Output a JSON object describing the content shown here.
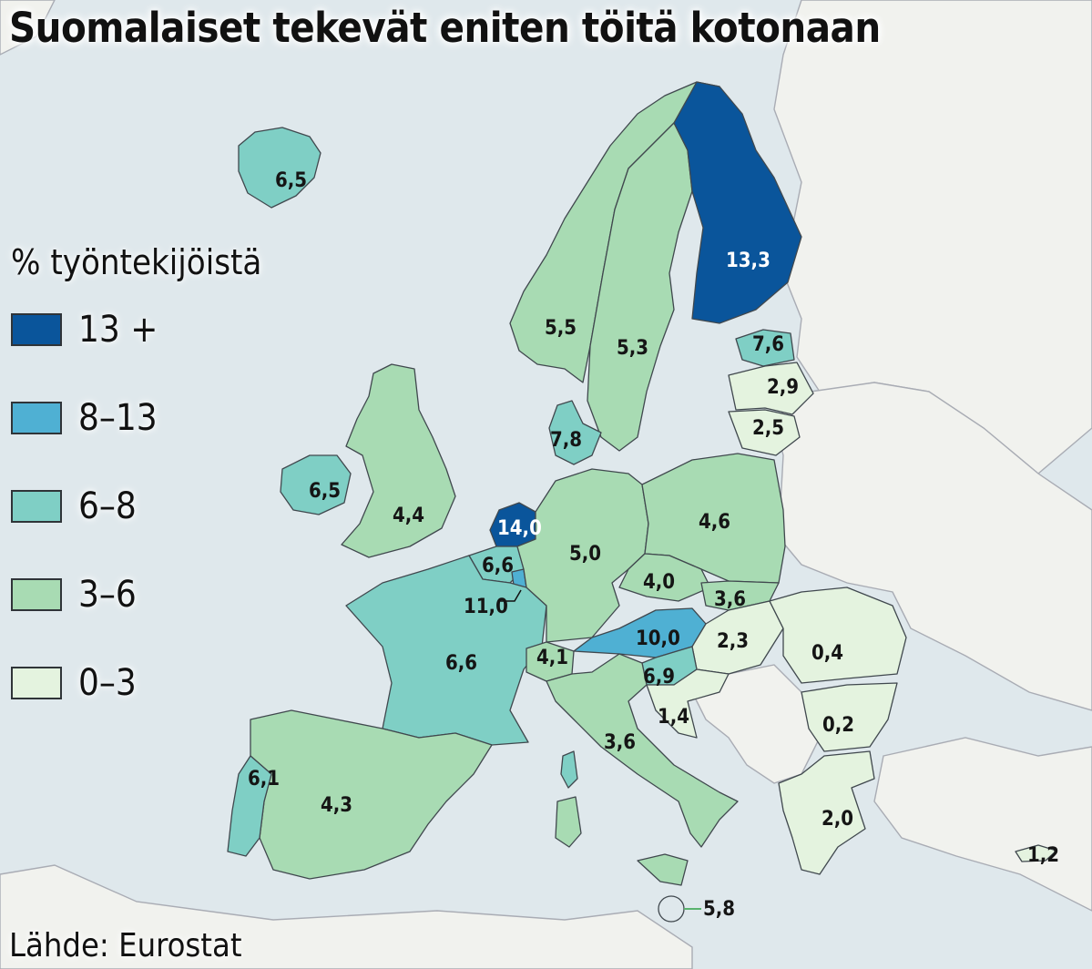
{
  "title": "Suomalaiset tekevät eniten töitä kotonaan",
  "legend": {
    "title": "% työntekijöistä",
    "items": [
      {
        "label": "13 +",
        "color": "#0a559b"
      },
      {
        "label": "8–13",
        "color": "#4fb0d3"
      },
      {
        "label": "6–8",
        "color": "#7fcfc5"
      },
      {
        "label": "3–6",
        "color": "#a8dbb3"
      },
      {
        "label": "0–3",
        "color": "#e4f3df"
      }
    ]
  },
  "source": "Lähde: Eurostat",
  "regions": [
    {
      "value": "13,3",
      "color": "#0a559b"
    },
    {
      "value": "14,0",
      "color": "#0a559b"
    },
    {
      "value": "11,0",
      "color": "#4fb0d3"
    },
    {
      "value": "10,0",
      "color": "#4fb0d3"
    },
    {
      "value": "7,8",
      "color": "#7fcfc5"
    },
    {
      "value": "7,6",
      "color": "#7fcfc5"
    },
    {
      "value": "6,9",
      "color": "#7fcfc5"
    },
    {
      "value": "6,6",
      "color": "#7fcfc5"
    },
    {
      "value": "6,6",
      "color": "#7fcfc5"
    },
    {
      "value": "6,5",
      "color": "#7fcfc5"
    },
    {
      "value": "6,5",
      "color": "#7fcfc5"
    },
    {
      "value": "6,1",
      "color": "#7fcfc5"
    },
    {
      "value": "5,8",
      "color": "#a8dbb3"
    },
    {
      "value": "5,5",
      "color": "#a8dbb3"
    },
    {
      "value": "5,3",
      "color": "#a8dbb3"
    },
    {
      "value": "5,0",
      "color": "#a8dbb3"
    },
    {
      "value": "4,6",
      "color": "#a8dbb3"
    },
    {
      "value": "4,4",
      "color": "#a8dbb3"
    },
    {
      "value": "4,3",
      "color": "#a8dbb3"
    },
    {
      "value": "4,1",
      "color": "#a8dbb3"
    },
    {
      "value": "4,0",
      "color": "#a8dbb3"
    },
    {
      "value": "3,6",
      "color": "#a8dbb3"
    },
    {
      "value": "3,6",
      "color": "#a8dbb3"
    },
    {
      "value": "2,9",
      "color": "#e4f3df"
    },
    {
      "value": "2,5",
      "color": "#e4f3df"
    },
    {
      "value": "2,3",
      "color": "#e4f3df"
    },
    {
      "value": "2,0",
      "color": "#e4f3df"
    },
    {
      "value": "1,4",
      "color": "#e4f3df"
    },
    {
      "value": "1,2",
      "color": "#e4f3df"
    },
    {
      "value": "0,4",
      "color": "#e4f3df"
    },
    {
      "value": "0,2",
      "color": "#e4f3df"
    }
  ]
}
